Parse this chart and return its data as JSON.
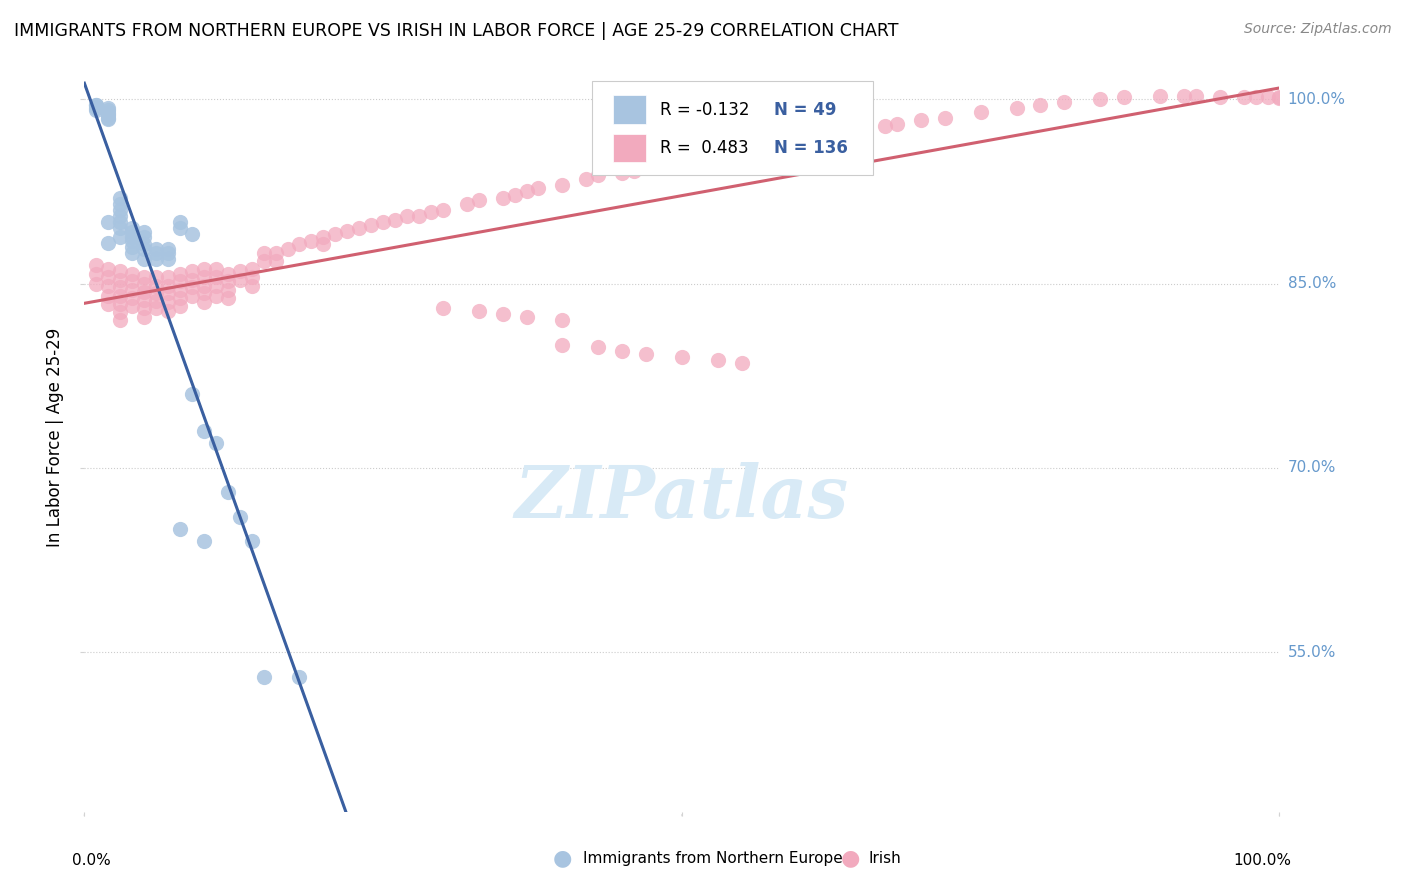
{
  "title": "IMMIGRANTS FROM NORTHERN EUROPE VS IRISH IN LABOR FORCE | AGE 25-29 CORRELATION CHART",
  "source": "Source: ZipAtlas.com",
  "ylabel": "In Labor Force | Age 25-29",
  "xlim": [
    0.0,
    1.0
  ],
  "ylim": [
    0.42,
    1.03
  ],
  "legend_r_blue": "-0.132",
  "legend_n_blue": "49",
  "legend_r_pink": "0.483",
  "legend_n_pink": "136",
  "blue_scatter_color": "#a8c4e0",
  "pink_scatter_color": "#f2aabe",
  "blue_line_color": "#3a5fa0",
  "pink_line_color": "#d06070",
  "dashed_line_color": "#90b8d8",
  "grid_color": "#cccccc",
  "right_label_color": "#6699cc",
  "watermark_color": "#d8eaf6",
  "ytick_values": [
    0.55,
    0.7,
    0.85,
    1.0
  ],
  "ytick_labels": [
    "55.0%",
    "70.0%",
    "85.0%",
    "100.0%"
  ],
  "blue_x": [
    0.01,
    0.01,
    0.01,
    0.01,
    0.02,
    0.02,
    0.02,
    0.02,
    0.02,
    0.02,
    0.02,
    0.02,
    0.03,
    0.03,
    0.03,
    0.03,
    0.03,
    0.03,
    0.03,
    0.04,
    0.04,
    0.04,
    0.04,
    0.04,
    0.04,
    0.05,
    0.05,
    0.05,
    0.05,
    0.05,
    0.06,
    0.06,
    0.06,
    0.07,
    0.07,
    0.07,
    0.08,
    0.08,
    0.09,
    0.09,
    0.1,
    0.11,
    0.12,
    0.13,
    0.14,
    0.08,
    0.1,
    0.15,
    0.18
  ],
  "blue_y": [
    0.995,
    0.995,
    0.993,
    0.991,
    0.993,
    0.991,
    0.989,
    0.987,
    0.985,
    0.984,
    0.9,
    0.883,
    0.92,
    0.915,
    0.91,
    0.905,
    0.9,
    0.895,
    0.888,
    0.895,
    0.892,
    0.888,
    0.885,
    0.88,
    0.875,
    0.892,
    0.888,
    0.882,
    0.878,
    0.87,
    0.878,
    0.875,
    0.87,
    0.878,
    0.875,
    0.87,
    0.9,
    0.895,
    0.89,
    0.76,
    0.73,
    0.72,
    0.68,
    0.66,
    0.64,
    0.65,
    0.64,
    0.53,
    0.53
  ],
  "pink_x": [
    0.01,
    0.01,
    0.01,
    0.02,
    0.02,
    0.02,
    0.02,
    0.02,
    0.03,
    0.03,
    0.03,
    0.03,
    0.03,
    0.03,
    0.03,
    0.04,
    0.04,
    0.04,
    0.04,
    0.04,
    0.05,
    0.05,
    0.05,
    0.05,
    0.05,
    0.05,
    0.06,
    0.06,
    0.06,
    0.06,
    0.06,
    0.07,
    0.07,
    0.07,
    0.07,
    0.07,
    0.08,
    0.08,
    0.08,
    0.08,
    0.08,
    0.09,
    0.09,
    0.09,
    0.09,
    0.1,
    0.1,
    0.1,
    0.1,
    0.1,
    0.11,
    0.11,
    0.11,
    0.11,
    0.12,
    0.12,
    0.12,
    0.12,
    0.13,
    0.13,
    0.14,
    0.14,
    0.14,
    0.15,
    0.15,
    0.16,
    0.16,
    0.17,
    0.18,
    0.19,
    0.2,
    0.2,
    0.21,
    0.22,
    0.23,
    0.24,
    0.25,
    0.26,
    0.27,
    0.28,
    0.29,
    0.3,
    0.32,
    0.33,
    0.35,
    0.36,
    0.37,
    0.38,
    0.4,
    0.42,
    0.43,
    0.45,
    0.46,
    0.47,
    0.48,
    0.5,
    0.52,
    0.53,
    0.55,
    0.57,
    0.58,
    0.6,
    0.62,
    0.64,
    0.65,
    0.67,
    0.68,
    0.7,
    0.72,
    0.75,
    0.78,
    0.8,
    0.82,
    0.85,
    0.87,
    0.9,
    0.92,
    0.93,
    0.95,
    0.97,
    0.98,
    0.99,
    1.0,
    1.0,
    0.4,
    0.43,
    0.45,
    0.47,
    0.5,
    0.53,
    0.55,
    0.3,
    0.33,
    0.35,
    0.37,
    0.4
  ],
  "pink_y": [
    0.865,
    0.858,
    0.85,
    0.862,
    0.855,
    0.848,
    0.84,
    0.833,
    0.86,
    0.853,
    0.847,
    0.84,
    0.833,
    0.827,
    0.82,
    0.858,
    0.852,
    0.845,
    0.838,
    0.832,
    0.855,
    0.85,
    0.843,
    0.837,
    0.83,
    0.823,
    0.855,
    0.848,
    0.842,
    0.836,
    0.83,
    0.855,
    0.848,
    0.842,
    0.835,
    0.828,
    0.858,
    0.852,
    0.845,
    0.838,
    0.832,
    0.86,
    0.853,
    0.847,
    0.84,
    0.862,
    0.855,
    0.848,
    0.842,
    0.835,
    0.862,
    0.855,
    0.848,
    0.84,
    0.858,
    0.852,
    0.845,
    0.838,
    0.86,
    0.853,
    0.862,
    0.855,
    0.848,
    0.875,
    0.868,
    0.875,
    0.868,
    0.878,
    0.882,
    0.885,
    0.888,
    0.882,
    0.89,
    0.893,
    0.895,
    0.898,
    0.9,
    0.902,
    0.905,
    0.905,
    0.908,
    0.91,
    0.915,
    0.918,
    0.92,
    0.922,
    0.925,
    0.928,
    0.93,
    0.935,
    0.938,
    0.94,
    0.942,
    0.945,
    0.948,
    0.95,
    0.955,
    0.958,
    0.96,
    0.963,
    0.965,
    0.968,
    0.97,
    0.973,
    0.975,
    0.978,
    0.98,
    0.983,
    0.985,
    0.99,
    0.993,
    0.995,
    0.998,
    1.0,
    1.002,
    1.003,
    1.003,
    1.003,
    1.002,
    1.002,
    1.002,
    1.002,
    1.002,
    1.001,
    0.8,
    0.798,
    0.795,
    0.793,
    0.79,
    0.788,
    0.785,
    0.83,
    0.828,
    0.825,
    0.823,
    0.82
  ]
}
